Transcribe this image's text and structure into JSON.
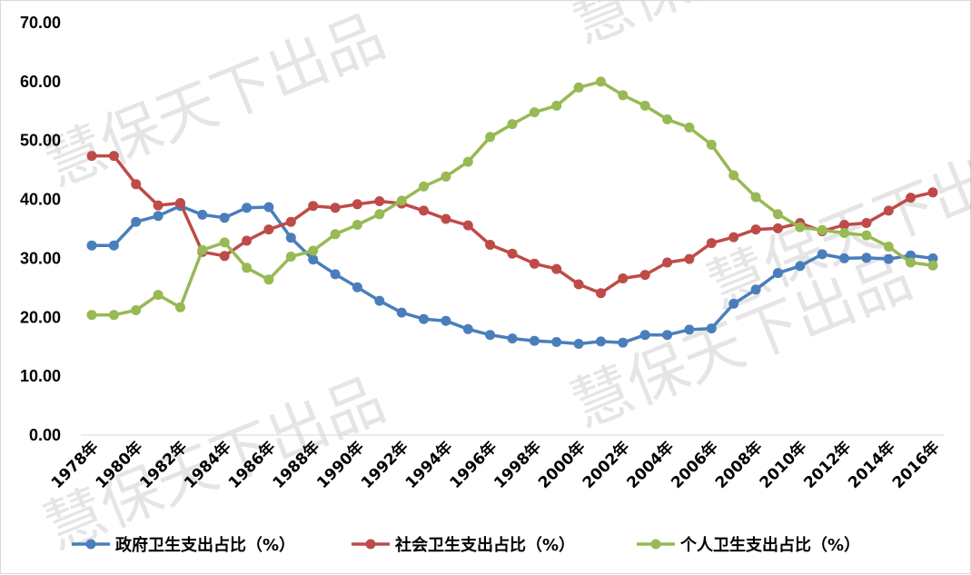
{
  "watermark": "慧保天下出品",
  "chart_data": {
    "type": "line",
    "title": "",
    "xlabel": "",
    "ylabel": "",
    "ylim": [
      0,
      70
    ],
    "y_ticks": [
      "0.00",
      "10.00",
      "20.00",
      "30.00",
      "40.00",
      "50.00",
      "60.00",
      "70.00"
    ],
    "grid": false,
    "legend_position": "bottom",
    "x_tick_labels": [
      "1978年",
      "1980年",
      "1982年",
      "1984年",
      "1986年",
      "1988年",
      "1990年",
      "1992年",
      "1994年",
      "1996年",
      "1998年",
      "2000年",
      "2002年",
      "2004年",
      "2006年",
      "2008年",
      "2010年",
      "2012年",
      "2014年",
      "2016年"
    ],
    "x": [
      1978,
      1979,
      1980,
      1981,
      1982,
      1983,
      1984,
      1985,
      1986,
      1987,
      1988,
      1989,
      1990,
      1991,
      1992,
      1993,
      1994,
      1995,
      1996,
      1997,
      1998,
      1999,
      2000,
      2001,
      2002,
      2003,
      2004,
      2005,
      2006,
      2007,
      2008,
      2009,
      2010,
      2011,
      2012,
      2013,
      2014,
      2015,
      2016
    ],
    "series": [
      {
        "name": "政府卫生支出占比（%）",
        "color": "#4a7ebb",
        "values": [
          32.2,
          32.2,
          36.2,
          37.2,
          38.9,
          37.4,
          36.9,
          38.6,
          38.7,
          33.5,
          29.8,
          27.3,
          25.1,
          22.8,
          20.8,
          19.7,
          19.4,
          18.0,
          17.0,
          16.4,
          16.0,
          15.8,
          15.5,
          15.9,
          15.7,
          17.0,
          17.0,
          17.9,
          18.1,
          22.3,
          24.7,
          27.5,
          28.7,
          30.7,
          30.0,
          30.1,
          29.9,
          30.5,
          30.0
        ]
      },
      {
        "name": "社会卫生支出占比（%）",
        "color": "#be4b48",
        "values": [
          47.4,
          47.4,
          42.6,
          39.0,
          39.4,
          31.1,
          30.4,
          33.0,
          34.9,
          36.2,
          38.9,
          38.6,
          39.2,
          39.7,
          39.3,
          38.1,
          36.7,
          35.6,
          32.3,
          30.8,
          29.1,
          28.2,
          25.6,
          24.1,
          26.6,
          27.2,
          29.3,
          29.9,
          32.6,
          33.6,
          34.9,
          35.1,
          36.0,
          34.6,
          35.7,
          36.0,
          38.1,
          40.3,
          41.2
        ]
      },
      {
        "name": "个人卫生支出占比（%）",
        "color": "#98b954",
        "values": [
          20.4,
          20.4,
          21.2,
          23.8,
          21.7,
          31.4,
          32.7,
          28.4,
          26.4,
          30.3,
          31.3,
          34.1,
          35.7,
          37.5,
          39.8,
          42.2,
          43.9,
          46.4,
          50.6,
          52.8,
          54.8,
          55.9,
          59.0,
          60.0,
          57.7,
          55.9,
          53.6,
          52.2,
          49.3,
          44.1,
          40.4,
          37.5,
          35.3,
          34.8,
          34.3,
          33.9,
          32.0,
          29.3,
          28.8
        ]
      }
    ]
  }
}
